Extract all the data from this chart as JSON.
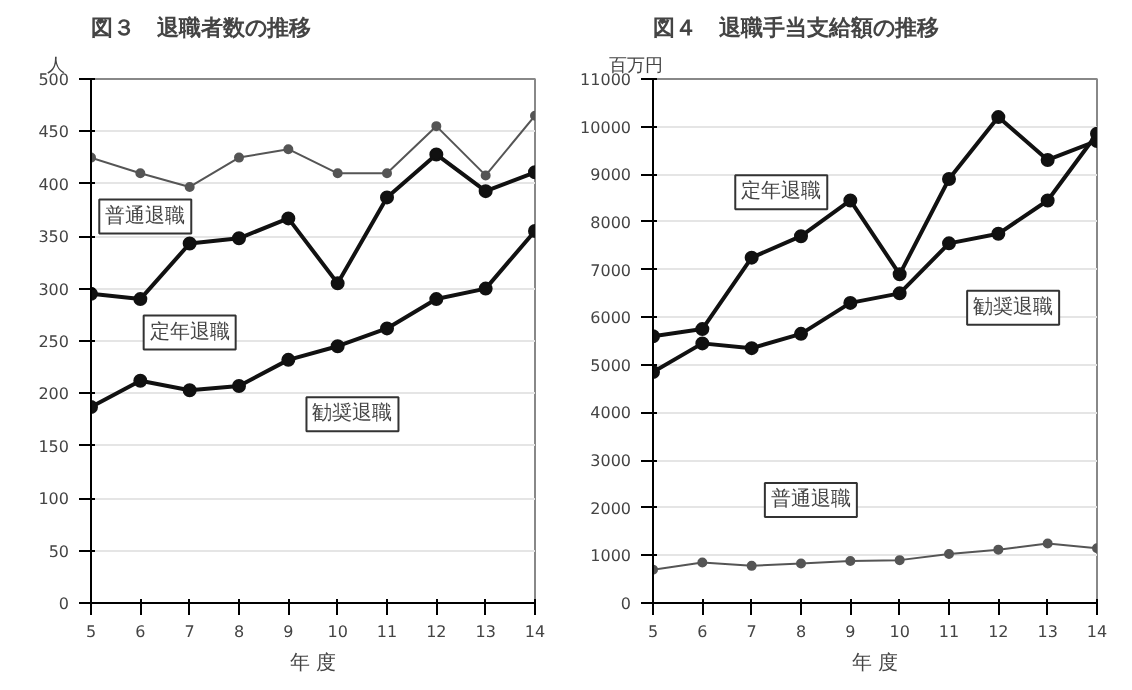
{
  "chart_data": [
    {
      "type": "line",
      "title": "図３　退職者数の推移",
      "xlabel": "年 度",
      "ylabel": "人",
      "x": [
        5,
        6,
        7,
        8,
        9,
        10,
        11,
        12,
        13,
        14
      ],
      "xlim": [
        5,
        14
      ],
      "xticks": [
        5,
        6,
        7,
        8,
        9,
        10,
        11,
        12,
        13,
        14
      ],
      "ylim": [
        0,
        500
      ],
      "yticks": [
        0,
        50,
        100,
        150,
        200,
        250,
        300,
        350,
        400,
        450,
        500
      ],
      "grid": "y",
      "legend": false,
      "marker": "circle",
      "line_style": "solid",
      "series": [
        {
          "name": "普通退職",
          "color": "#555555",
          "values": [
            425,
            410,
            397,
            425,
            433,
            410,
            410,
            455,
            408,
            465
          ]
        },
        {
          "name": "定年退職",
          "color": "#111111",
          "values": [
            295,
            290,
            343,
            348,
            367,
            305,
            387,
            428,
            393,
            411
          ]
        },
        {
          "name": "勧奨退職",
          "color": "#111111",
          "values": [
            187,
            212,
            203,
            207,
            232,
            245,
            262,
            290,
            300,
            355
          ]
        }
      ]
    },
    {
      "type": "line",
      "title": "図４　退職手当支給額の推移",
      "xlabel": "年 度",
      "ylabel": "百万円",
      "x": [
        5,
        6,
        7,
        8,
        9,
        10,
        11,
        12,
        13,
        14
      ],
      "xlim": [
        5,
        14
      ],
      "xticks": [
        5,
        6,
        7,
        8,
        9,
        10,
        11,
        12,
        13,
        14
      ],
      "ylim": [
        0,
        11000
      ],
      "yticks": [
        0,
        1000,
        2000,
        3000,
        4000,
        5000,
        6000,
        7000,
        8000,
        9000,
        10000,
        11000
      ],
      "grid": "y",
      "legend": false,
      "marker": "circle",
      "line_style": "solid",
      "series": [
        {
          "name": "定年退職",
          "color": "#111111",
          "values": [
            5600,
            5750,
            7250,
            7700,
            8450,
            6900,
            8900,
            10200,
            9300,
            9700
          ]
        },
        {
          "name": "勧奨退職",
          "color": "#111111",
          "values": [
            4850,
            5450,
            5350,
            5650,
            6300,
            6500,
            7550,
            7750,
            8450,
            9850
          ]
        },
        {
          "name": "普通退職",
          "color": "#555555",
          "values": [
            700,
            850,
            780,
            830,
            880,
            900,
            1030,
            1120,
            1250,
            1150
          ]
        }
      ]
    }
  ]
}
